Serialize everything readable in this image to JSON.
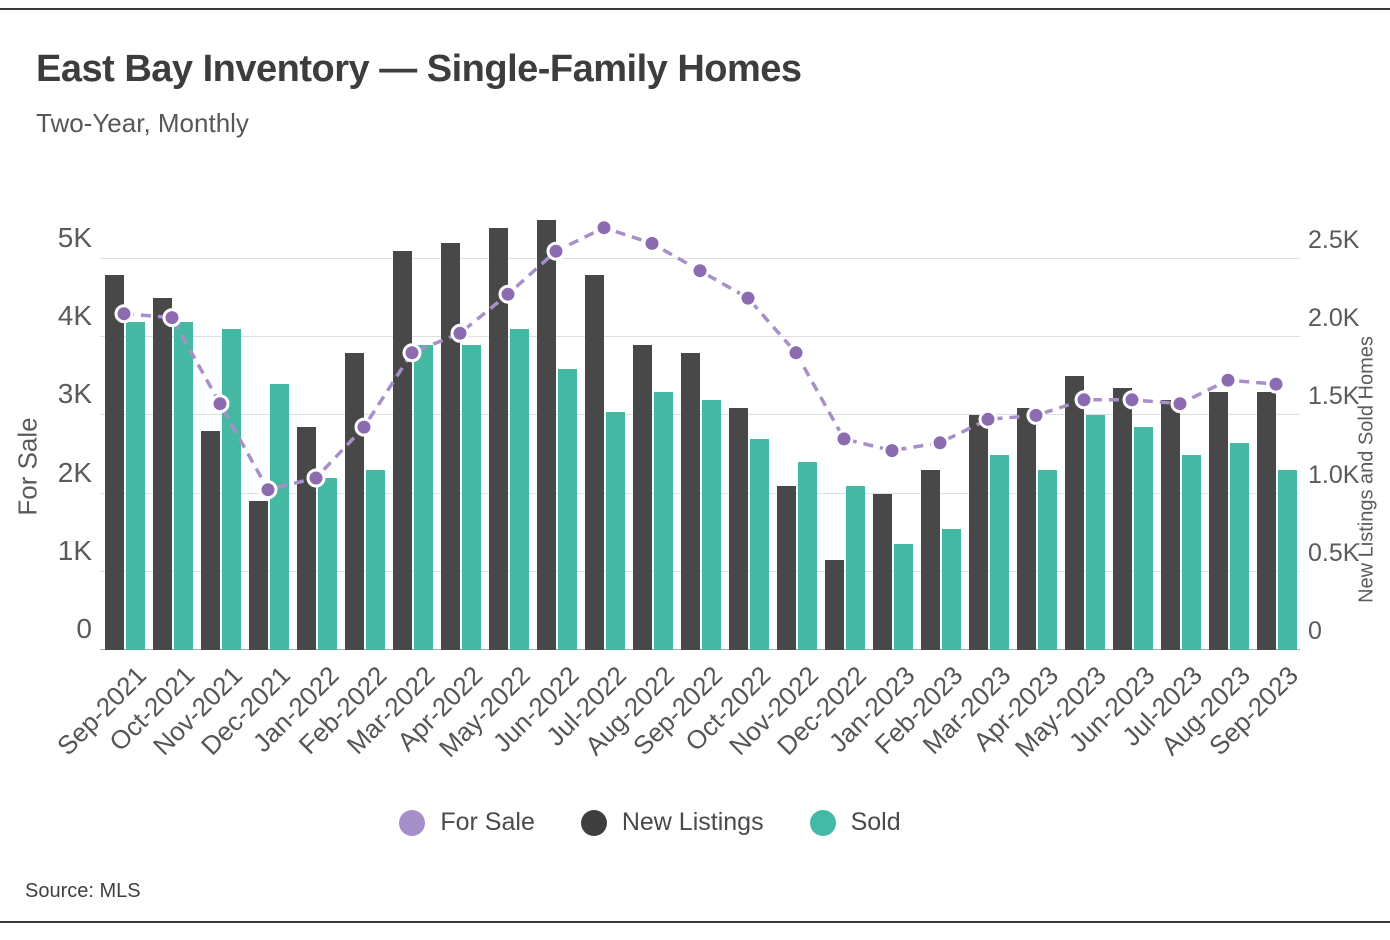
{
  "header": {
    "title": "East Bay Inventory — Single-Family Homes",
    "subtitle": "Two-Year, Monthly"
  },
  "source": "Source: MLS",
  "chart_data": {
    "type": "combo bar+line",
    "categories": [
      "Sep-2021",
      "Oct-2021",
      "Nov-2021",
      "Dec-2021",
      "Jan-2022",
      "Feb-2022",
      "Mar-2022",
      "Apr-2022",
      "May-2022",
      "Jun-2022",
      "Jul-2022",
      "Aug-2022",
      "Sep-2022",
      "Oct-2022",
      "Nov-2022",
      "Dec-2022",
      "Jan-2023",
      "Feb-2023",
      "Mar-2023",
      "Apr-2023",
      "May-2023",
      "Jun-2023",
      "Jul-2023",
      "Aug-2023",
      "Sep-2023"
    ],
    "series": [
      {
        "name": "For Sale",
        "type": "line",
        "axis": "left",
        "color": "#8d6bb1",
        "line_color": "#a78fc9",
        "values": [
          4300,
          4250,
          3150,
          2050,
          2200,
          2850,
          3800,
          4050,
          4550,
          5100,
          5400,
          5200,
          4850,
          4500,
          3800,
          2700,
          2550,
          2650,
          2950,
          3000,
          3200,
          3200,
          3150,
          3450,
          3400
        ]
      },
      {
        "name": "New Listings",
        "type": "bar",
        "axis": "right",
        "color": "#484848",
        "values": [
          2400,
          2250,
          1400,
          950,
          1425,
          1900,
          2550,
          2600,
          2700,
          2750,
          2400,
          1950,
          1900,
          1550,
          1050,
          575,
          1000,
          1150,
          1500,
          1550,
          1750,
          1675,
          1600,
          1650,
          1650
        ]
      },
      {
        "name": "Sold",
        "type": "bar",
        "axis": "right",
        "color": "#45b8a4",
        "values": [
          2100,
          2100,
          2050,
          1700,
          1100,
          1150,
          1950,
          1950,
          2050,
          1800,
          1525,
          1650,
          1600,
          1350,
          1200,
          1050,
          675,
          775,
          1250,
          1150,
          1500,
          1425,
          1250,
          1325,
          1150
        ]
      }
    ],
    "left_axis": {
      "title": "For Sale",
      "ticks": [
        "0",
        "1K",
        "2K",
        "3K",
        "4K",
        "5K"
      ],
      "tick_values": [
        0,
        1000,
        2000,
        3000,
        4000,
        5000
      ],
      "range": [
        0,
        5690
      ]
    },
    "right_axis": {
      "title": "New Listings and Sold Homes",
      "ticks": [
        "0",
        "0.5K",
        "1.0K",
        "1.5K",
        "2.0K",
        "2.5K"
      ],
      "tick_values": [
        0,
        500,
        1000,
        1500,
        2000,
        2500
      ],
      "range": [
        0,
        2845
      ]
    },
    "legend": [
      {
        "label": "For Sale",
        "color": "#a78fc9"
      },
      {
        "label": "New Listings",
        "color": "#3f3f3f"
      },
      {
        "label": "Sold",
        "color": "#44b9a5"
      }
    ],
    "grid": true,
    "legend_position": "bottom"
  }
}
